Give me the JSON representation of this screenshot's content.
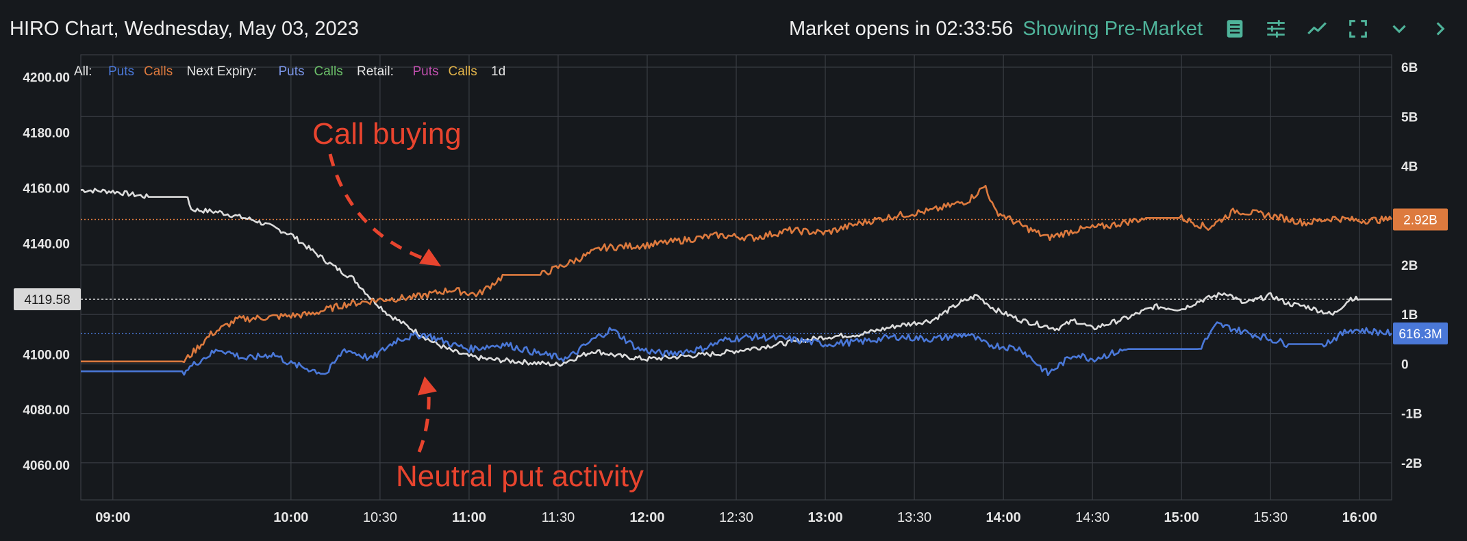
{
  "header": {
    "title": "HIRO Chart, Wednesday, May 03, 2023",
    "market_status": "Market opens in 02:33:56",
    "mode": "Showing Pre-Market",
    "icons": [
      "notes-icon",
      "settings-sliders-icon",
      "line-chart-icon",
      "fullscreen-icon",
      "chevron-down-icon",
      "chevron-right-icon"
    ]
  },
  "legend": {
    "groups": [
      {
        "label": "All:",
        "items": [
          {
            "text": "Puts",
            "color": "#4a78d8"
          },
          {
            "text": "Calls",
            "color": "#dd7a3e"
          }
        ]
      },
      {
        "label": "Next Expiry:",
        "items": [
          {
            "text": "Puts",
            "color": "#7b96e8"
          },
          {
            "text": "Calls",
            "color": "#6cc06a"
          }
        ]
      },
      {
        "label": "Retail:",
        "items": [
          {
            "text": "Puts",
            "color": "#c04fae"
          },
          {
            "text": "Calls",
            "color": "#e0b24a"
          }
        ]
      }
    ],
    "timeframe": "1d"
  },
  "colors": {
    "background": "#16191d",
    "grid": "#3a3e44",
    "spx": "#dcdcdc",
    "calls": "#dd7a3e",
    "puts": "#4a78d8",
    "annotation": "#e8442e",
    "premarket_text": "#4fb39a"
  },
  "chart_data": {
    "type": "line",
    "x_ticks": [
      {
        "t": 9.0,
        "label": "09:00"
      },
      {
        "t": 10.0,
        "label": "10:00"
      },
      {
        "t": 10.5,
        "label": "10:30"
      },
      {
        "t": 11.0,
        "label": "11:00"
      },
      {
        "t": 11.5,
        "label": "11:30"
      },
      {
        "t": 12.0,
        "label": "12:00"
      },
      {
        "t": 12.5,
        "label": "12:30"
      },
      {
        "t": 13.0,
        "label": "13:00"
      },
      {
        "t": 13.5,
        "label": "13:30"
      },
      {
        "t": 14.0,
        "label": "14:00"
      },
      {
        "t": 14.5,
        "label": "14:30"
      },
      {
        "t": 15.0,
        "label": "15:00"
      },
      {
        "t": 15.5,
        "label": "15:30"
      },
      {
        "t": 16.0,
        "label": "16:00"
      }
    ],
    "x_bold_ticks": [
      "09:00",
      "10:00",
      "11:00",
      "12:00",
      "13:00",
      "14:00",
      "15:00",
      "16:00"
    ],
    "xlim": [
      8.82,
      16.18
    ],
    "y_left": {
      "ticks": [
        4200,
        4180,
        4160,
        4140,
        4100,
        4080,
        4060
      ],
      "tick_labels": [
        "4200.00",
        "4180.00",
        "4160.00",
        "4140.00",
        "4100.00",
        "4080.00",
        "4060.00"
      ],
      "range": [
        4047.2,
        4207.8
      ]
    },
    "y_right": {
      "ticks": [
        6,
        5,
        4,
        2,
        1,
        0,
        -1,
        -2
      ],
      "tick_labels": [
        "6B",
        "5B",
        "4B",
        "2B",
        "1B",
        "0",
        "-1B",
        "-2B"
      ],
      "unit": "B",
      "range": [
        -2.75,
        6.25
      ]
    },
    "series": [
      {
        "name": "SPX",
        "axis": "left",
        "color": "#dcdcdc",
        "points": [
          [
            8.82,
            4159
          ],
          [
            9.0,
            4158.5
          ],
          [
            9.2,
            4156.5
          ],
          [
            9.42,
            4156.5
          ],
          [
            9.44,
            4152
          ],
          [
            9.6,
            4151
          ],
          [
            9.8,
            4148
          ],
          [
            10.0,
            4143
          ],
          [
            10.1,
            4138
          ],
          [
            10.25,
            4131
          ],
          [
            10.35,
            4127
          ],
          [
            10.45,
            4120
          ],
          [
            10.55,
            4114
          ],
          [
            10.7,
            4108
          ],
          [
            10.8,
            4104
          ],
          [
            10.9,
            4101
          ],
          [
            11.0,
            4099
          ],
          [
            11.1,
            4098
          ],
          [
            11.3,
            4097
          ],
          [
            11.5,
            4096
          ],
          [
            11.7,
            4101
          ],
          [
            11.85,
            4099
          ],
          [
            12.0,
            4098
          ],
          [
            12.2,
            4099
          ],
          [
            12.4,
            4100
          ],
          [
            12.6,
            4102
          ],
          [
            12.8,
            4104
          ],
          [
            13.0,
            4106
          ],
          [
            13.2,
            4107
          ],
          [
            13.4,
            4110
          ],
          [
            13.6,
            4112
          ],
          [
            13.75,
            4118
          ],
          [
            13.85,
            4121
          ],
          [
            13.95,
            4116
          ],
          [
            14.1,
            4112
          ],
          [
            14.3,
            4109
          ],
          [
            14.4,
            4112
          ],
          [
            14.5,
            4109
          ],
          [
            14.7,
            4113
          ],
          [
            14.85,
            4117
          ],
          [
            15.0,
            4116
          ],
          [
            15.1,
            4119
          ],
          [
            15.25,
            4122
          ],
          [
            15.35,
            4118
          ],
          [
            15.5,
            4121
          ],
          [
            15.6,
            4118
          ],
          [
            15.7,
            4117
          ],
          [
            15.85,
            4114
          ],
          [
            15.95,
            4120
          ],
          [
            16.0,
            4119.58
          ],
          [
            16.18,
            4119.58
          ]
        ]
      },
      {
        "name": "Calls",
        "axis": "right",
        "color": "#dd7a3e",
        "points": [
          [
            8.82,
            0.05
          ],
          [
            9.4,
            0.05
          ],
          [
            9.55,
            0.6
          ],
          [
            9.7,
            0.9
          ],
          [
            9.9,
            0.95
          ],
          [
            10.1,
            1.0
          ],
          [
            10.3,
            1.2
          ],
          [
            10.5,
            1.3
          ],
          [
            10.7,
            1.35
          ],
          [
            10.9,
            1.5
          ],
          [
            11.05,
            1.4
          ],
          [
            11.2,
            1.8
          ],
          [
            11.4,
            1.8
          ],
          [
            11.6,
            2.1
          ],
          [
            11.75,
            2.35
          ],
          [
            12.0,
            2.4
          ],
          [
            12.2,
            2.5
          ],
          [
            12.4,
            2.6
          ],
          [
            12.6,
            2.55
          ],
          [
            12.8,
            2.7
          ],
          [
            13.0,
            2.65
          ],
          [
            13.2,
            2.85
          ],
          [
            13.4,
            3.0
          ],
          [
            13.6,
            3.1
          ],
          [
            13.8,
            3.3
          ],
          [
            13.9,
            3.6
          ],
          [
            13.95,
            3.1
          ],
          [
            14.1,
            2.8
          ],
          [
            14.25,
            2.55
          ],
          [
            14.4,
            2.7
          ],
          [
            14.6,
            2.8
          ],
          [
            14.8,
            2.95
          ],
          [
            15.0,
            2.95
          ],
          [
            15.15,
            2.75
          ],
          [
            15.3,
            3.1
          ],
          [
            15.5,
            3.0
          ],
          [
            15.7,
            2.85
          ],
          [
            15.85,
            2.95
          ],
          [
            16.0,
            2.9
          ],
          [
            16.18,
            2.92
          ]
        ]
      },
      {
        "name": "Puts",
        "axis": "right",
        "color": "#4a78d8",
        "points": [
          [
            8.82,
            -0.15
          ],
          [
            9.4,
            -0.15
          ],
          [
            9.5,
            0.1
          ],
          [
            9.6,
            0.3
          ],
          [
            9.75,
            0.1
          ],
          [
            9.9,
            0.2
          ],
          [
            10.0,
            0.0
          ],
          [
            10.1,
            -0.1
          ],
          [
            10.2,
            -0.2
          ],
          [
            10.3,
            0.3
          ],
          [
            10.45,
            0.1
          ],
          [
            10.6,
            0.5
          ],
          [
            10.75,
            0.6
          ],
          [
            10.9,
            0.4
          ],
          [
            11.0,
            0.3
          ],
          [
            11.2,
            0.4
          ],
          [
            11.4,
            0.2
          ],
          [
            11.55,
            0.1
          ],
          [
            11.7,
            0.5
          ],
          [
            11.8,
            0.7
          ],
          [
            11.95,
            0.3
          ],
          [
            12.1,
            0.2
          ],
          [
            12.3,
            0.3
          ],
          [
            12.45,
            0.5
          ],
          [
            12.6,
            0.55
          ],
          [
            12.8,
            0.5
          ],
          [
            13.0,
            0.4
          ],
          [
            13.2,
            0.45
          ],
          [
            13.4,
            0.55
          ],
          [
            13.6,
            0.5
          ],
          [
            13.8,
            0.6
          ],
          [
            13.9,
            0.4
          ],
          [
            14.1,
            0.3
          ],
          [
            14.25,
            -0.2
          ],
          [
            14.4,
            0.2
          ],
          [
            14.5,
            0.1
          ],
          [
            14.7,
            0.3
          ],
          [
            14.9,
            0.3
          ],
          [
            15.1,
            0.3
          ],
          [
            15.2,
            0.8
          ],
          [
            15.4,
            0.6
          ],
          [
            15.6,
            0.4
          ],
          [
            15.8,
            0.4
          ],
          [
            15.95,
            0.7
          ],
          [
            16.18,
            0.62
          ]
        ]
      }
    ],
    "price_labels": [
      {
        "text": "2.92B",
        "axis": "right",
        "value": 2.92,
        "color": "#dd7a3e"
      },
      {
        "text": "616.3M",
        "axis": "right",
        "value": 0.6163,
        "color": "#4a78d8"
      },
      {
        "text": "4119.58",
        "axis": "left",
        "value": 4119.58,
        "color": "#d9d9d9"
      }
    ],
    "annotations": [
      {
        "text": "Call buying",
        "arrow_to": [
          10.82,
          2.0
        ],
        "color": "#e8442e"
      },
      {
        "text": "Neutral put activity",
        "arrow_to": [
          10.75,
          -0.25
        ],
        "color": "#e8442e"
      }
    ],
    "grid": true
  }
}
